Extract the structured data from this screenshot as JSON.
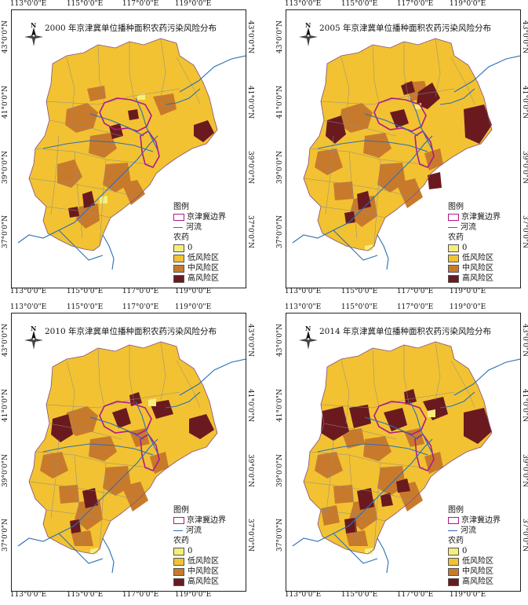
{
  "panels": [
    {
      "year_title": "2000 年京津冀单位播种面积农药污染风险分布",
      "variant": 0
    },
    {
      "year_title": "2005 年京津冀单位播种面积农药污染风险分布",
      "variant": 1
    },
    {
      "year_title": "2010 年京津冀单位播种面积农药污染风险分布",
      "variant": 2
    },
    {
      "year_title": "2014 年京津冀单位播种面积农药污染风险分布",
      "variant": 3
    }
  ],
  "axes": {
    "lon_ticks": [
      "113°0'0\"E",
      "115°0'0\"E",
      "117°0'0\"E",
      "119°0'0\"E"
    ],
    "lat_ticks": [
      "43°0'0\"N",
      "41°0'0\"N",
      "39°0'0\"N",
      "37°0'0\"N"
    ]
  },
  "north_label": "N",
  "legend": {
    "title": "图例",
    "boundary": "京津冀边界",
    "river": "河流",
    "group": "农药",
    "classes": [
      {
        "label": "0",
        "color": "#f5ee7a"
      },
      {
        "label": "低风险区",
        "color": "#f2c232"
      },
      {
        "label": "中风险区",
        "color": "#c87a2c"
      },
      {
        "label": "高风险区",
        "color": "#6a1a1e"
      }
    ]
  },
  "colors": {
    "boundary": "#b0188a",
    "river": "#2a6fb5",
    "county_line": "#8c8c8c"
  }
}
